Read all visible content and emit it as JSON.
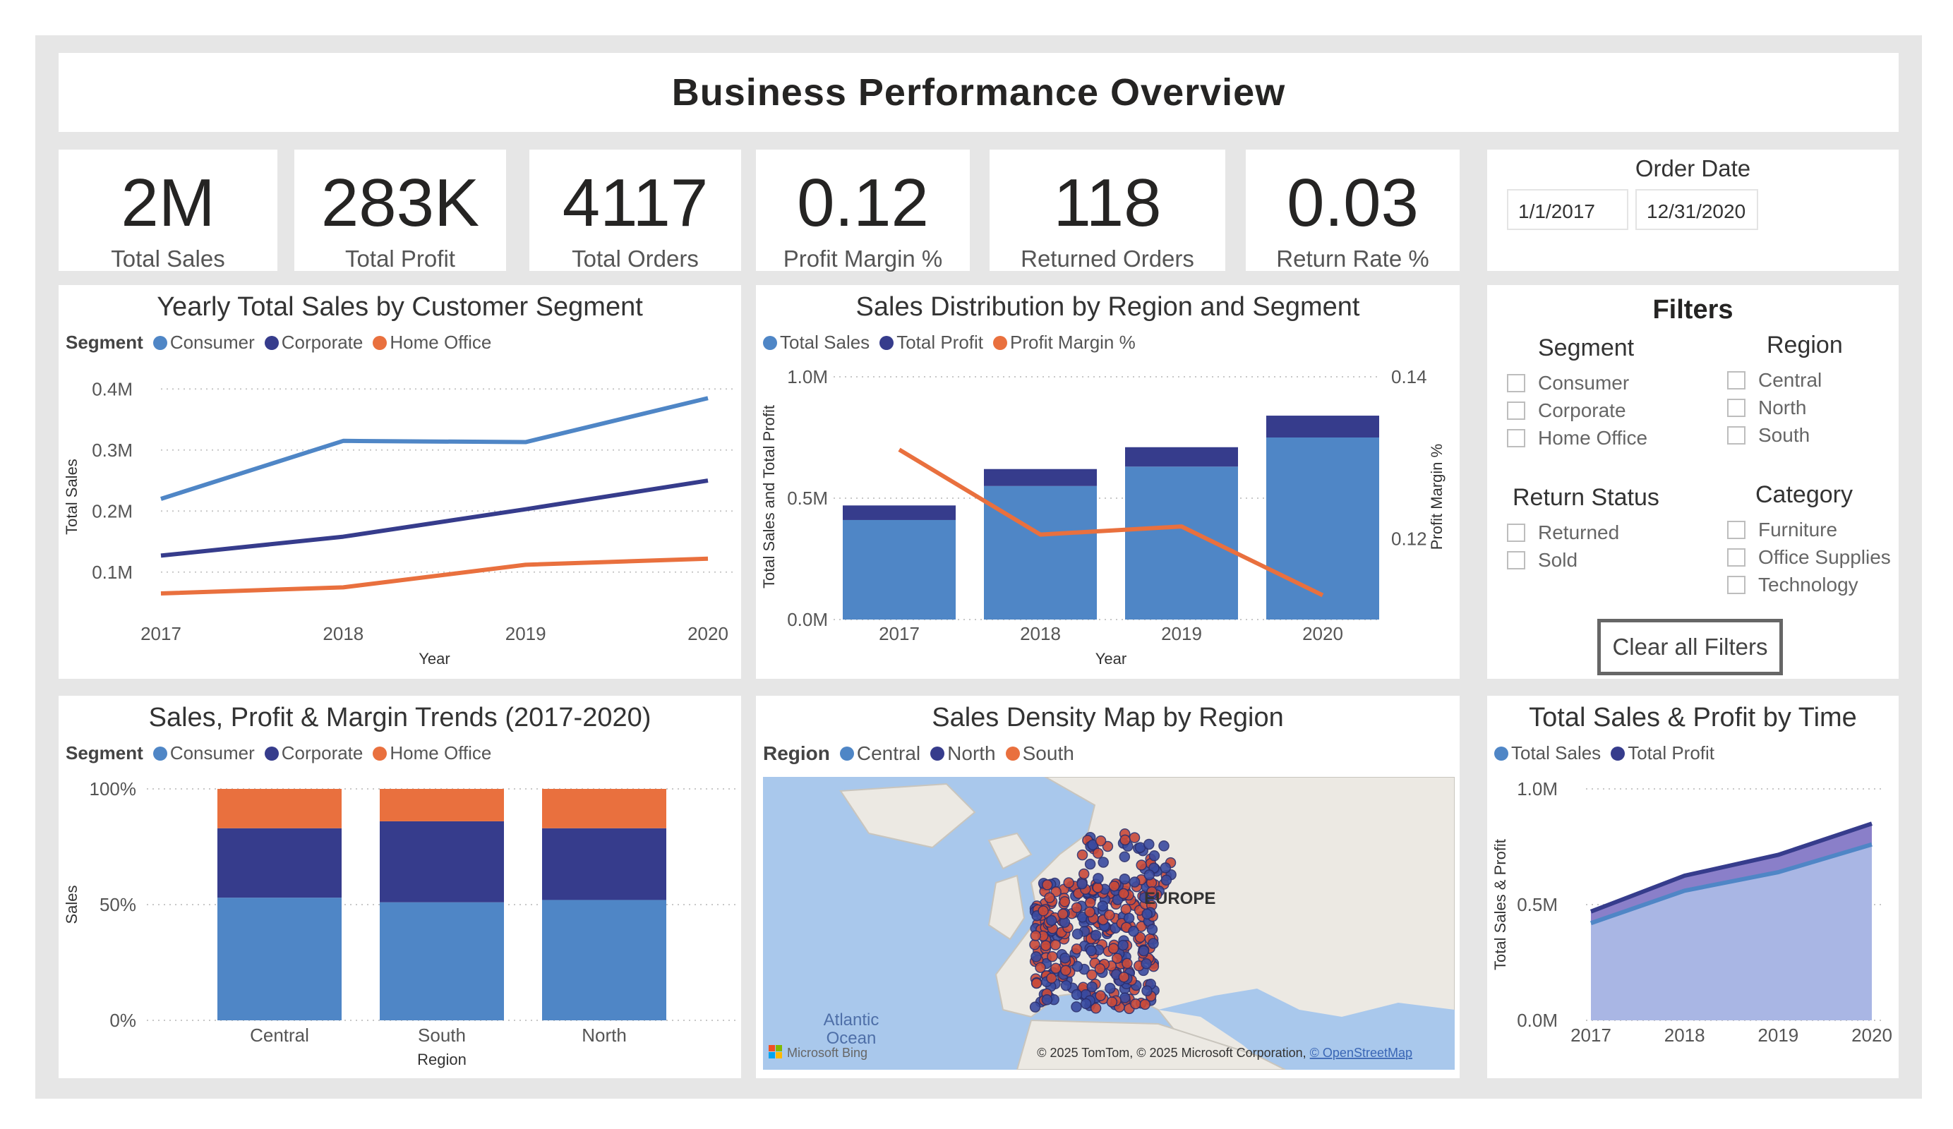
{
  "title": "Business Performance Overview",
  "kpis": [
    {
      "value": "2M",
      "label": "Total Sales"
    },
    {
      "value": "283K",
      "label": "Total Profit"
    },
    {
      "value": "4117",
      "label": "Total Orders"
    },
    {
      "value": "0.12",
      "label": "Profit Margin %"
    },
    {
      "value": "118",
      "label": "Returned Orders"
    },
    {
      "value": "0.03",
      "label": "Return Rate %"
    }
  ],
  "order_date": {
    "title": "Order Date",
    "start": "1/1/2017",
    "end": "12/31/2020"
  },
  "filters": {
    "title": "Filters",
    "segment": {
      "label": "Segment",
      "options": [
        "Consumer",
        "Corporate",
        "Home Office"
      ]
    },
    "region": {
      "label": "Region",
      "options": [
        "Central",
        "North",
        "South"
      ]
    },
    "return_status": {
      "label": "Return Status",
      "options": [
        "Returned",
        "Sold"
      ]
    },
    "category": {
      "label": "Category",
      "options": [
        "Furniture",
        "Office Supplies",
        "Technology"
      ]
    },
    "clear_label": "Clear all Filters"
  },
  "colors": {
    "consumer": "#4f86c6",
    "corporate": "#363c8c",
    "home_office": "#e9703e",
    "sales": "#4f86c6",
    "profit": "#363c8c",
    "margin": "#e9703e"
  },
  "map": {
    "title": "Sales Density Map by Region",
    "legend_title": "Region",
    "legend": [
      "Central",
      "North",
      "South"
    ],
    "label_europe": "EUROPE",
    "label_ocean_1": "Atlantic",
    "label_ocean_2": "Ocean",
    "bing": "Microsoft Bing",
    "attribution": "© 2025 TomTom, © 2025 Microsoft Corporation, ",
    "attribution_link": "© OpenStreetMap"
  },
  "chart_data": [
    {
      "type": "line",
      "title": "Yearly Total Sales by Customer Segment",
      "legend_title": "Segment",
      "xlabel": "Year",
      "ylabel": "Total Sales",
      "x": [
        "2017",
        "2018",
        "2019",
        "2020"
      ],
      "yticks": [
        "0.1M",
        "0.2M",
        "0.3M",
        "0.4M"
      ],
      "ylim": [
        0.05,
        0.42
      ],
      "series": [
        {
          "name": "Consumer",
          "values": [
            0.22,
            0.315,
            0.313,
            0.385
          ]
        },
        {
          "name": "Corporate",
          "values": [
            0.127,
            0.158,
            0.203,
            0.25
          ]
        },
        {
          "name": "Home Office",
          "values": [
            0.065,
            0.075,
            0.112,
            0.122
          ]
        }
      ],
      "grid": true,
      "legend_position": "top-left"
    },
    {
      "type": "bar",
      "title": "Sales Distribution by Region and Segment",
      "legend": [
        "Total Sales",
        "Total Profit",
        "Profit Margin %"
      ],
      "xlabel": "Year",
      "ylabel": "Total Sales and Total Profit",
      "ylabel_right": "Profit Margin %",
      "categories": [
        "2017",
        "2018",
        "2019",
        "2020"
      ],
      "yticks": [
        "0.0M",
        "0.5M",
        "1.0M"
      ],
      "yticks_right": [
        "0.12",
        "0.14"
      ],
      "ylim": [
        0,
        1.0
      ],
      "ylim_right": [
        0.11,
        0.14
      ],
      "series": [
        {
          "name": "Total Sales",
          "values": [
            0.41,
            0.55,
            0.63,
            0.75
          ]
        },
        {
          "name": "Total Profit",
          "values": [
            0.06,
            0.07,
            0.08,
            0.09
          ]
        },
        {
          "name": "Profit Margin %",
          "values": [
            0.131,
            0.1205,
            0.1215,
            0.113
          ]
        }
      ],
      "stacked": true,
      "grid": true,
      "legend_position": "top-left"
    },
    {
      "type": "bar",
      "title": "Sales, Profit & Margin Trends (2017-2020)",
      "legend_title": "Segment",
      "xlabel": "Region",
      "ylabel": "Sales",
      "categories": [
        "Central",
        "South",
        "North"
      ],
      "yticks": [
        "0%",
        "50%",
        "100%"
      ],
      "ylim": [
        0,
        100
      ],
      "series": [
        {
          "name": "Consumer",
          "values": [
            53,
            51,
            52
          ]
        },
        {
          "name": "Corporate",
          "values": [
            30,
            35,
            31
          ]
        },
        {
          "name": "Home Office",
          "values": [
            17,
            14,
            17
          ]
        }
      ],
      "stacked": true,
      "percent": true,
      "grid": true,
      "legend_position": "top-left"
    },
    {
      "type": "area",
      "title": "Total Sales & Profit by Time",
      "legend": [
        "Total Sales",
        "Total Profit"
      ],
      "ylabel": "Total Sales & Profit",
      "x": [
        "2017",
        "2018",
        "2019",
        "2020"
      ],
      "yticks": [
        "0.0M",
        "0.5M",
        "1.0M"
      ],
      "ylim": [
        0,
        1.0
      ],
      "series": [
        {
          "name": "Total Sales",
          "values": [
            0.42,
            0.56,
            0.64,
            0.76
          ]
        },
        {
          "name": "Total Profit",
          "values": [
            0.05,
            0.065,
            0.075,
            0.09
          ]
        }
      ],
      "stacked": true,
      "grid": true,
      "legend_position": "top-left"
    }
  ]
}
